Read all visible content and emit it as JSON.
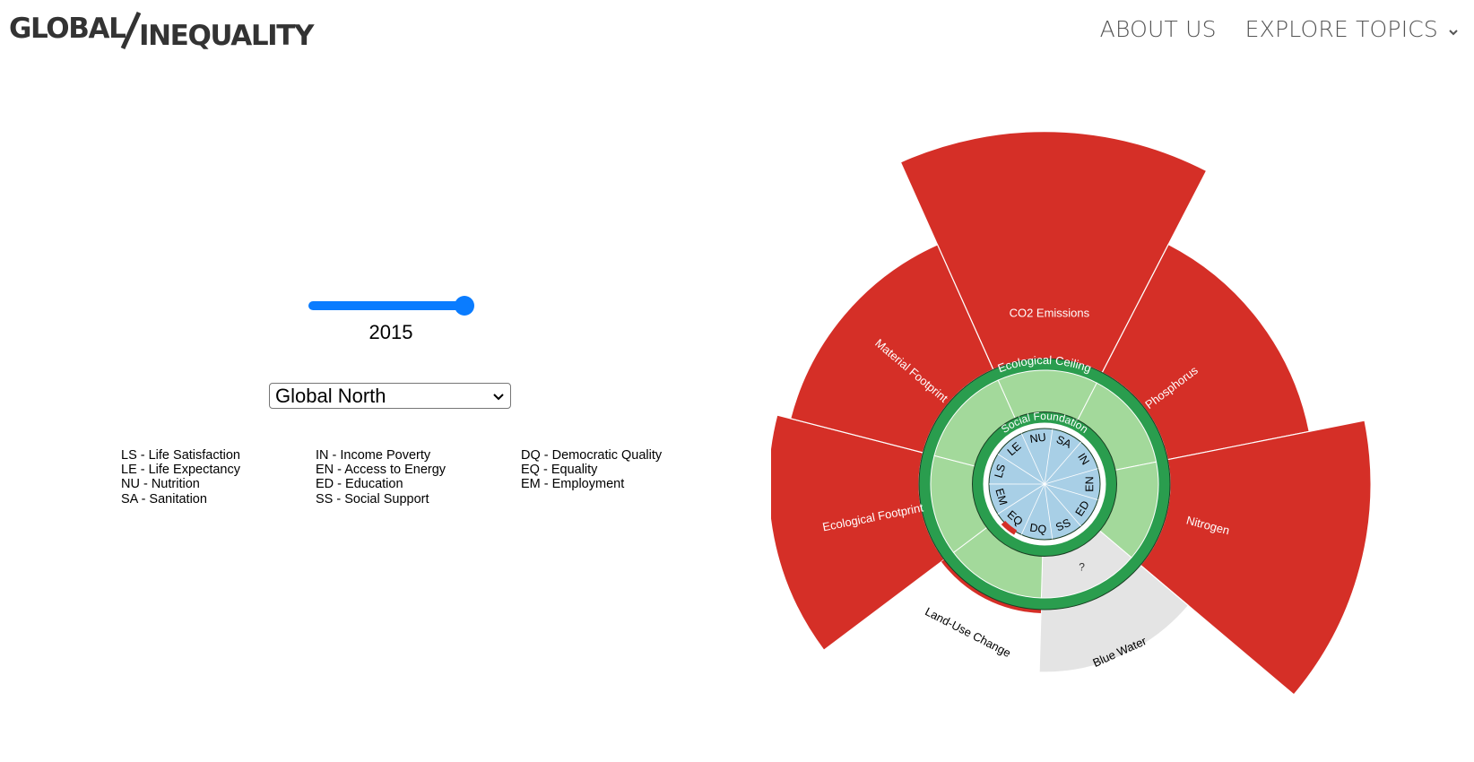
{
  "header": {
    "logo_left": "GLOBAL",
    "logo_right": "INEQUALITY",
    "nav": [
      {
        "label": "ABOUT US"
      },
      {
        "label": "EXPLORE TOPICS",
        "icon": "chevron-down-icon"
      }
    ]
  },
  "controls": {
    "year_slider": {
      "value": 2015,
      "position_fraction": 1.0
    },
    "year_label": "2015",
    "region_select": {
      "selected": "Global North"
    }
  },
  "legend": {
    "col1": [
      "LS - Life Satisfaction",
      "LE - Life Expectancy",
      "NU - Nutrition",
      "SA - Sanitation"
    ],
    "col2": [
      "IN - Income Poverty",
      "EN - Access to Energy",
      "ED - Education",
      "SS - Social Support"
    ],
    "col3": [
      "DQ - Democratic Quality",
      "EQ - Equality",
      "EM - Employment"
    ]
  },
  "chart_data": {
    "type": "doughnut-radial",
    "ring_labels": {
      "ecological_ceiling": "Ecological Ceiling",
      "social_foundation": "Social Foundation"
    },
    "colors": {
      "overshoot": "#d52f27",
      "boundary_ring": "#2a9d4e",
      "safe_space": "#a3d99b",
      "social": "#a8cfe6",
      "unknown": "#e4e4e4",
      "shortfall": "#d52f27"
    },
    "ecological_boundaries": [
      {
        "label": "CO2 Emissions",
        "status": "overshoot",
        "outer_extent": 2.81
      },
      {
        "label": "Phosphorus",
        "status": "overshoot",
        "outer_extent": 2.15
      },
      {
        "label": "Nitrogen",
        "status": "overshoot",
        "outer_extent": 2.6
      },
      {
        "label": "Blue Water",
        "status": "unknown",
        "unknown_marker": "?",
        "outer_extent": 1.5
      },
      {
        "label": "Land-Use Change",
        "status": "overshoot",
        "outer_extent": 1.0
      },
      {
        "label": "Ecological Footprint",
        "status": "overshoot",
        "outer_extent": 2.2
      },
      {
        "label": "Material Footprint",
        "status": "overshoot",
        "outer_extent": 2.09
      }
    ],
    "social_indicators": [
      "NU",
      "SA",
      "IN",
      "EN",
      "ED",
      "SS",
      "DQ",
      "EQ",
      "EM",
      "LS",
      "LE"
    ],
    "social_shortfall": [
      "EQ"
    ]
  }
}
